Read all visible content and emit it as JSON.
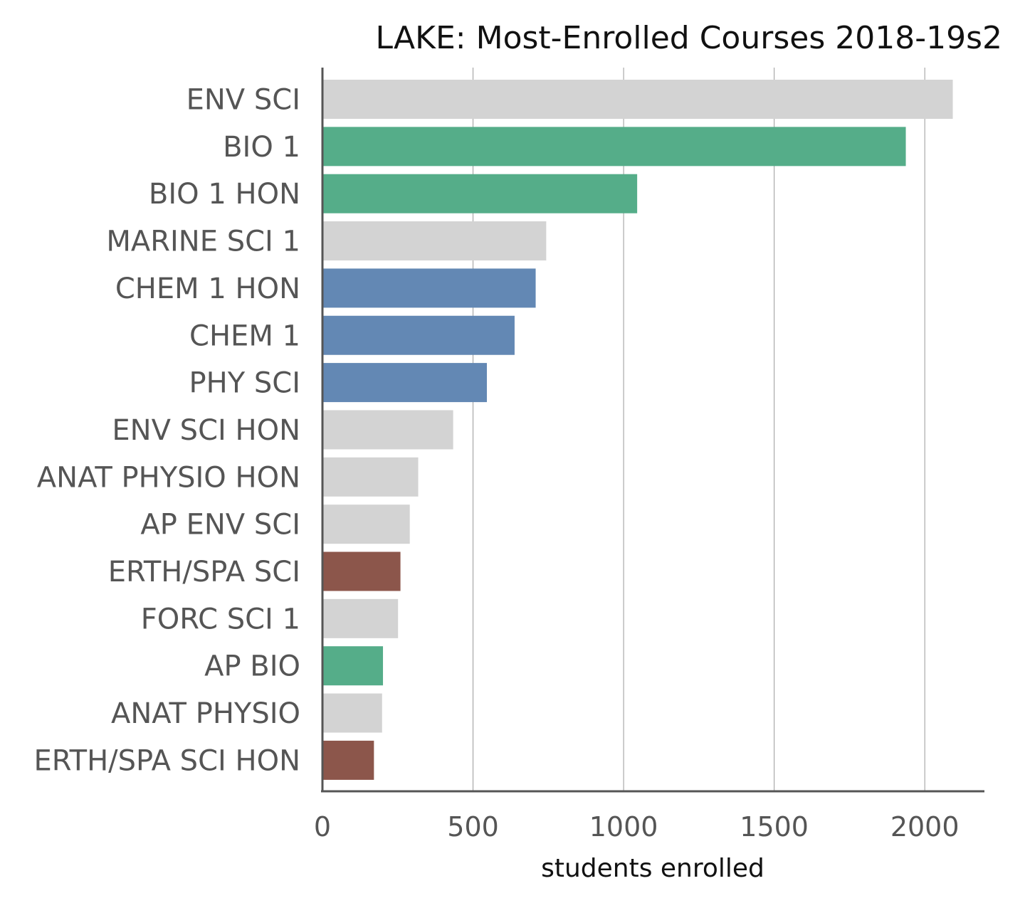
{
  "chart_data": {
    "type": "bar",
    "orientation": "horizontal",
    "title": "LAKE: Most-Enrolled Courses 2018-19s2",
    "xlabel": "students enrolled",
    "ylabel": "",
    "xlim": [
      0,
      2200
    ],
    "xticks": [
      0,
      500,
      1000,
      1500,
      2000
    ],
    "grid": "vertical",
    "categories": [
      "ENV SCI",
      "BIO 1",
      "BIO 1 HON",
      "MARINE SCI 1",
      "CHEM 1 HON",
      "CHEM 1",
      "PHY SCI",
      "ENV SCI HON",
      "ANAT PHYSIO HON",
      "AP ENV SCI",
      "ERTH/SPA SCI",
      "FORC SCI 1",
      "AP BIO",
      "ANAT PHYSIO",
      "ERTH/SPA SCI HON"
    ],
    "values": [
      2093,
      1937,
      1045,
      743,
      708,
      638,
      546,
      434,
      318,
      290,
      259,
      251,
      201,
      198,
      171
    ],
    "bar_colors": [
      "#d3d3d3",
      "#55ad89",
      "#55ad89",
      "#d3d3d3",
      "#6388b4",
      "#6388b4",
      "#6388b4",
      "#d3d3d3",
      "#d3d3d3",
      "#d3d3d3",
      "#8c564b",
      "#d3d3d3",
      "#55ad89",
      "#d3d3d3",
      "#8c564b"
    ]
  }
}
